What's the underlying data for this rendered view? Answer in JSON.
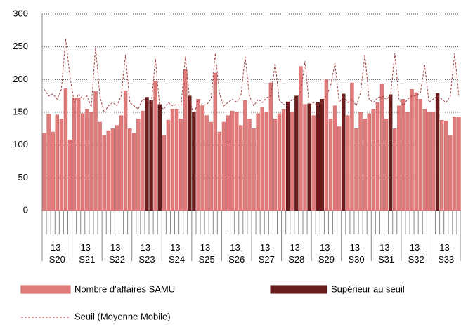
{
  "chart_data": {
    "type": "bar",
    "categories": [
      null,
      null,
      null,
      "13- S20",
      null,
      null,
      null,
      null,
      null,
      null,
      "13- S21",
      null,
      null,
      null,
      null,
      null,
      null,
      "13- S22",
      null,
      null,
      null,
      null,
      null,
      null,
      "13- S23",
      null,
      null,
      null,
      null,
      null,
      null,
      "13- S24",
      null,
      null,
      null,
      null,
      null,
      null,
      "13- S25",
      null,
      null,
      null,
      null,
      null,
      null,
      "13- S26",
      null,
      null,
      null,
      null,
      null,
      null,
      "13- S27",
      null,
      null,
      null,
      null,
      null,
      null,
      "13- S28",
      null,
      null,
      null,
      null,
      null,
      null,
      "13- S29",
      null,
      null,
      null,
      null,
      null,
      null,
      "13- S30",
      null,
      null,
      null,
      null,
      null,
      null,
      "13- S31",
      null,
      null,
      null,
      null,
      null,
      null,
      "13- S32",
      null,
      null,
      null,
      null,
      null,
      null,
      "13- S33",
      null,
      null,
      null
    ],
    "series": [
      {
        "name": "Nombre d'affaires SAMU",
        "color": "#e07b7b",
        "values": [
          118,
          147,
          120,
          146,
          140,
          186,
          108,
          172,
          172,
          148,
          155,
          150,
          182,
          135,
          115,
          122,
          125,
          130,
          145,
          183,
          125,
          118,
          140,
          152,
          null,
          null,
          198,
          null,
          115,
          138,
          155,
          155,
          140,
          215,
          null,
          null,
          170,
          160,
          145,
          135,
          210,
          120,
          135,
          145,
          152,
          150,
          130,
          168,
          140,
          125,
          148,
          158,
          150,
          195,
          140,
          148,
          155,
          null,
          150,
          null,
          220,
          162,
          null,
          145,
          null,
          null,
          200,
          140,
          160,
          128,
          null,
          145,
          195,
          125,
          150,
          140,
          148,
          155,
          165,
          193,
          140,
          null,
          125,
          160,
          170,
          150,
          185,
          180,
          170,
          155,
          150,
          150,
          null,
          138,
          137,
          115,
          143,
          143
        ]
      },
      {
        "name": "Supérieur au seuil",
        "color": "#6b1c1c",
        "values": [
          null,
          null,
          null,
          null,
          null,
          null,
          null,
          null,
          null,
          null,
          null,
          null,
          null,
          null,
          null,
          null,
          null,
          null,
          null,
          null,
          null,
          null,
          null,
          null,
          173,
          168,
          null,
          162,
          null,
          null,
          null,
          null,
          null,
          null,
          175,
          150,
          null,
          null,
          null,
          null,
          null,
          null,
          null,
          null,
          null,
          null,
          null,
          null,
          null,
          null,
          null,
          null,
          null,
          null,
          null,
          null,
          null,
          166,
          null,
          175,
          null,
          null,
          163,
          null,
          165,
          170,
          null,
          null,
          null,
          null,
          178,
          null,
          null,
          null,
          null,
          null,
          null,
          null,
          null,
          null,
          null,
          177,
          null,
          null,
          null,
          null,
          null,
          null,
          null,
          null,
          null,
          null,
          179,
          null,
          null,
          null,
          null,
          null
        ]
      },
      {
        "name": "Seuil (Moyenne Mobile)",
        "color": "#a04040",
        "line": true,
        "values": [
          185,
          175,
          178,
          170,
          185,
          262,
          205,
          165,
          178,
          170,
          175,
          158,
          250,
          175,
          150,
          160,
          165,
          160,
          175,
          238,
          165,
          160,
          155,
          170,
          168,
          160,
          232,
          158,
          155,
          165,
          160,
          162,
          160,
          235,
          170,
          145,
          168,
          160,
          162,
          170,
          240,
          178,
          160,
          165,
          170,
          165,
          175,
          235,
          175,
          160,
          170,
          165,
          172,
          175,
          225,
          168,
          162,
          160,
          170,
          170,
          180,
          228,
          160,
          165,
          160,
          165,
          175,
          190,
          225,
          165,
          175,
          165,
          170,
          160,
          180,
          238,
          170,
          165,
          172,
          175,
          170,
          175,
          240,
          170,
          160,
          170,
          175,
          175,
          180,
          222,
          165,
          170,
          175,
          170,
          165,
          175,
          240,
          175
        ]
      }
    ],
    "ylim": [
      0,
      300
    ],
    "yticks": [
      0,
      50,
      100,
      150,
      200,
      250,
      300
    ],
    "grid": true
  }
}
